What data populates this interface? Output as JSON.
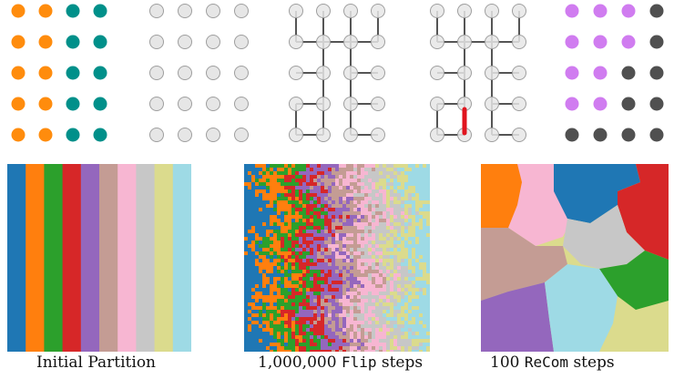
{
  "grid": {
    "rows": 5,
    "cols": 4
  },
  "colors": {
    "orange": "#ff8c0d",
    "teal": "#00908a",
    "node_fill": "#e6e6e6",
    "node_stroke": "#9e9e9e",
    "edge": "#555555",
    "cut_edge": "#e0141e",
    "violet": "#d07cf0",
    "dark_gray": "#505050",
    "stripes": [
      "#1f77b4",
      "#ff7f0e",
      "#2ca02c",
      "#d62728",
      "#9467bd",
      "#c49c94",
      "#f7b6d2",
      "#c7c7c7",
      "#dbdb8d",
      "#9edae5"
    ]
  },
  "captions": {
    "initial": "Initial Partition",
    "flip_count": "1,000,000",
    "flip_word": "Flip",
    "flip_suffix": "steps",
    "recom_count": "100",
    "recom_word": "ReCom",
    "recom_suffix": "steps"
  }
}
